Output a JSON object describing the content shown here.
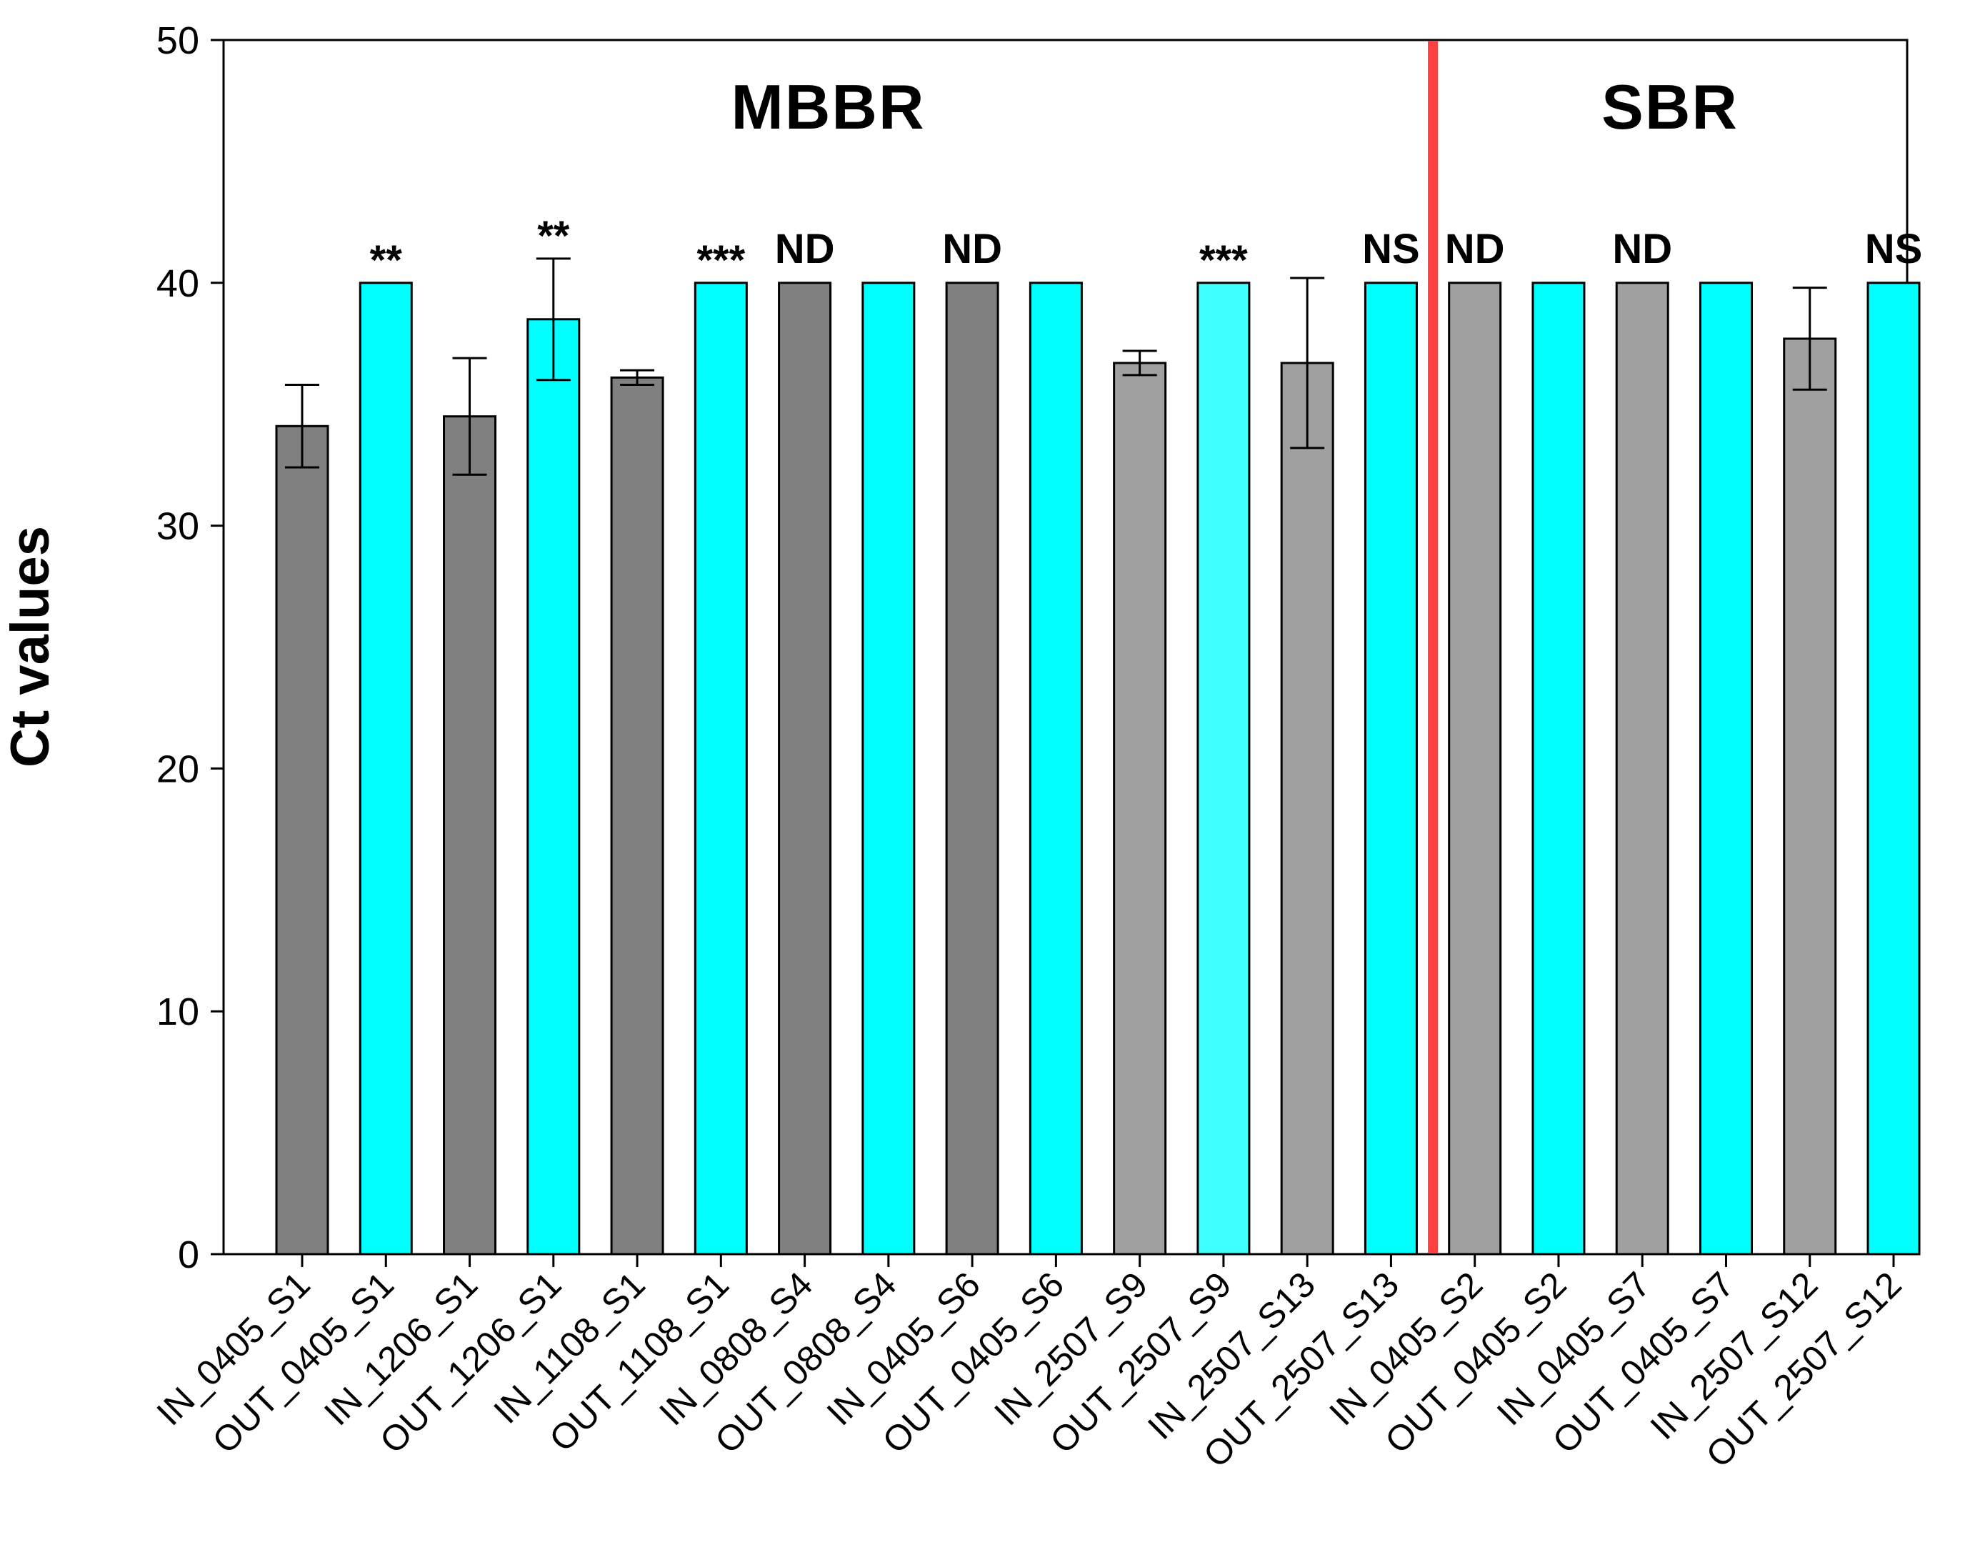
{
  "chart_data": {
    "type": "bar",
    "title": "",
    "xlabel": "",
    "ylabel": "Ct values",
    "ylim": [
      0,
      50
    ],
    "yticks": [
      0,
      10,
      20,
      30,
      40,
      50
    ],
    "categories": [
      "IN_0405_S1",
      "OUT_0405_S1",
      "IN_1206_S1",
      "OUT_1206_S1",
      "IN_1108_S1",
      "OUT_1108_S1",
      "IN_0808_S4",
      "OUT_0808_S4",
      "IN_0405_S6",
      "OUT_0405_S6",
      "IN_2507_S9",
      "OUT_2507_S9",
      "IN_2507_S13",
      "OUT_2507_S13",
      "IN_0405_S2",
      "OUT_0405_S2",
      "IN_0405_S7",
      "OUT_0405_S7",
      "IN_2507_S12",
      "OUT_2507_S12"
    ],
    "values": [
      34.1,
      40,
      34.5,
      38.5,
      36.1,
      40,
      40,
      40,
      40,
      40,
      36.7,
      40,
      36.7,
      40,
      40,
      40,
      40,
      40,
      37.7,
      40
    ],
    "errors": [
      1.7,
      null,
      2.4,
      2.5,
      0.3,
      null,
      null,
      null,
      null,
      null,
      0.5,
      null,
      3.5,
      null,
      null,
      null,
      null,
      null,
      2.1,
      null
    ],
    "bar_colors": [
      "#808080",
      "#00ffff",
      "#808080",
      "#00ffff",
      "#808080",
      "#00ffff",
      "#808080",
      "#00ffff",
      "#808080",
      "#00ffff",
      "#a0a0a0",
      "#40ffff",
      "#a0a0a0",
      "#00ffff",
      "#a0a0a0",
      "#00ffff",
      "#a0a0a0",
      "#00ffff",
      "#a0a0a0",
      "#00ffff"
    ],
    "annotations": [
      "",
      "**",
      "",
      "**",
      "",
      "***",
      "ND",
      "",
      "ND",
      "",
      "",
      "***",
      "",
      "NS",
      "ND",
      "",
      "ND",
      "",
      "",
      "NS"
    ],
    "groups": [
      {
        "label": "MBBR",
        "start": 0,
        "end": 13
      },
      {
        "label": "SBR",
        "start": 14,
        "end": 19
      }
    ],
    "divider_after_index": 13,
    "divider_color": "#ff4040"
  }
}
